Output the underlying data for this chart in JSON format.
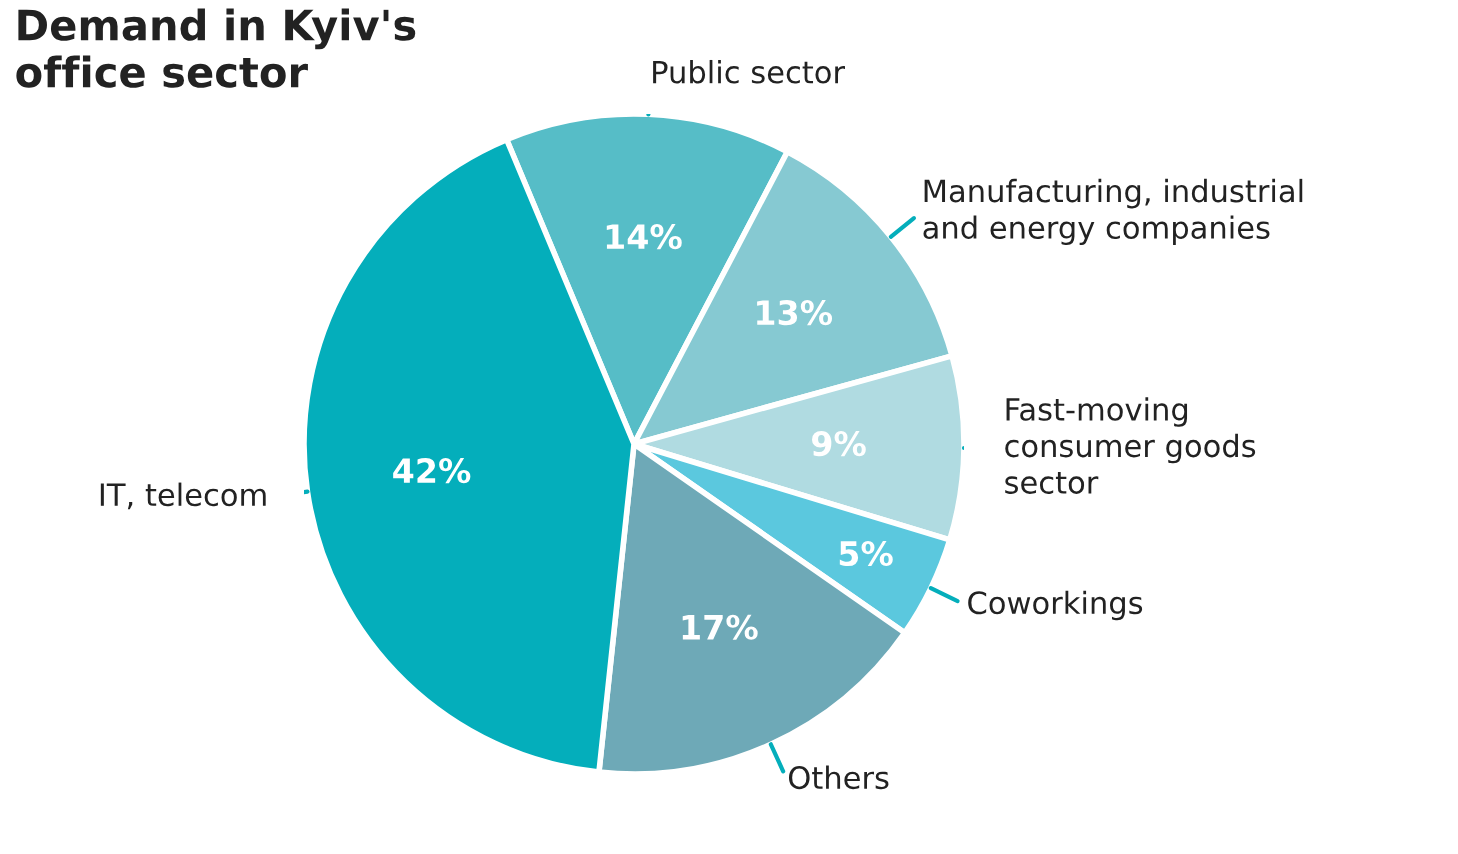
{
  "chart_data": {
    "type": "pie",
    "title": "Demand in Kyiv's\noffice sector",
    "categories": [
      "Public sector",
      "Manufacturing, industrial\nand energy companies",
      "Fast-moving\nconsumer goods\nsector",
      "Coworkings",
      "Others",
      "IT, telecom"
    ],
    "values": [
      14,
      13,
      9,
      5,
      17,
      42
    ],
    "value_labels": [
      "14%",
      "13%",
      "9%",
      "5%",
      "17%",
      "42%"
    ],
    "colors": [
      "#56bdc7",
      "#86c9d2",
      "#b0dbe1",
      "#5bc8de",
      "#6ea9b7",
      "#04aebb"
    ]
  }
}
